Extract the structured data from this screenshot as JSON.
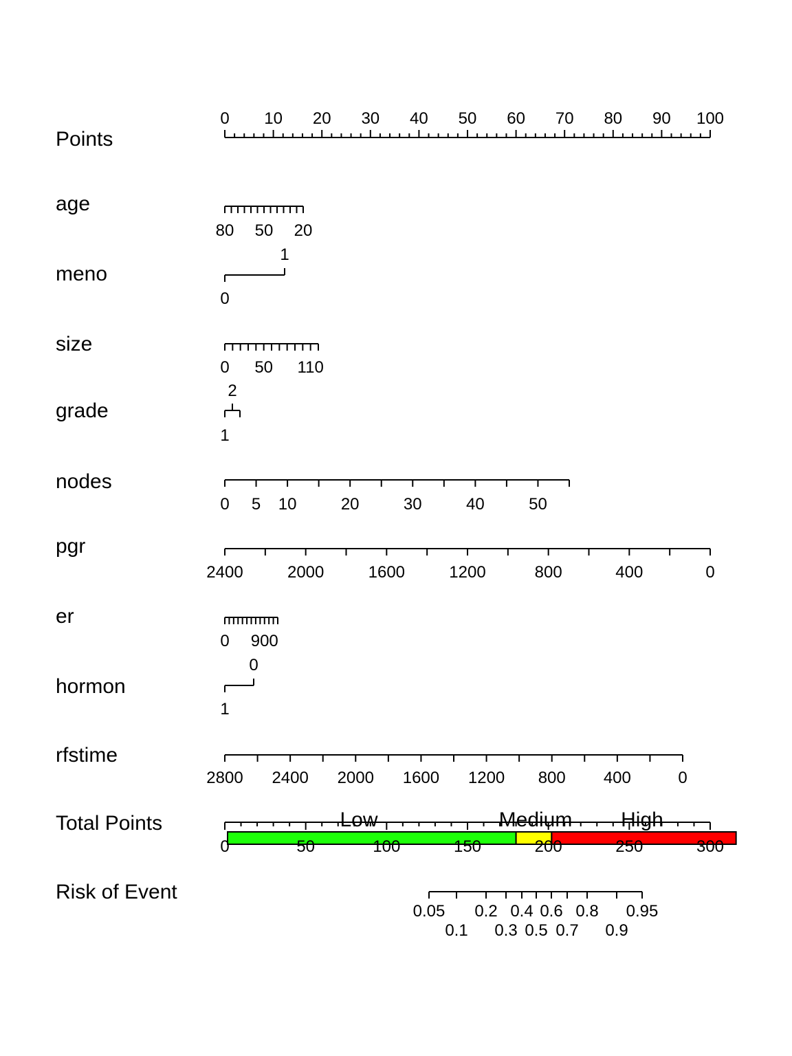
{
  "chart_data": {
    "type": "nomogram",
    "title": "",
    "rows": [
      {
        "label": "Points",
        "ticks": [
          0,
          2,
          4,
          6,
          8,
          10,
          12,
          14,
          16,
          18,
          20,
          22,
          24,
          26,
          28,
          30,
          32,
          34,
          36,
          38,
          40,
          42,
          44,
          46,
          48,
          50,
          52,
          54,
          56,
          58,
          60,
          62,
          64,
          66,
          68,
          70,
          72,
          74,
          76,
          78,
          80,
          82,
          84,
          86,
          88,
          90,
          92,
          94,
          96,
          98,
          100
        ],
        "labels": [
          0,
          10,
          20,
          30,
          40,
          50,
          60,
          70,
          80,
          90,
          100
        ]
      },
      {
        "label": "age",
        "ticks": [
          80,
          75,
          70,
          65,
          60,
          55,
          50,
          45,
          40,
          35,
          30,
          25,
          20
        ],
        "labels": [
          80,
          50,
          20
        ]
      },
      {
        "label": "meno",
        "ticks": [
          0,
          1
        ],
        "labels": [
          0,
          1
        ]
      },
      {
        "label": "size",
        "ticks": [
          0,
          10,
          20,
          30,
          40,
          50,
          60,
          70,
          80,
          90,
          100,
          110,
          120
        ],
        "labels": [
          0,
          50,
          110
        ]
      },
      {
        "label": "grade",
        "ticks": [
          1,
          2,
          3
        ],
        "labels": [
          1,
          2
        ]
      },
      {
        "label": "nodes",
        "ticks": [
          0,
          5,
          10,
          15,
          20,
          25,
          30,
          35,
          40,
          45,
          50,
          55
        ],
        "labels": [
          0,
          5,
          10,
          20,
          30,
          40,
          50
        ]
      },
      {
        "label": "pgr",
        "ticks": [
          2400,
          2200,
          2000,
          1800,
          1600,
          1400,
          1200,
          1000,
          800,
          600,
          400,
          200,
          0
        ],
        "labels": [
          2400,
          2000,
          1600,
          1200,
          800,
          400,
          0
        ]
      },
      {
        "label": "er",
        "ticks": [
          0,
          100,
          200,
          300,
          400,
          500,
          600,
          700,
          800,
          900,
          1000,
          1100,
          1200
        ],
        "labels": [
          0,
          900
        ]
      },
      {
        "label": "hormon",
        "ticks": [
          1,
          0
        ],
        "labels": [
          1,
          0
        ]
      },
      {
        "label": "rfstime",
        "ticks": [
          2800,
          2600,
          2400,
          2200,
          2000,
          1800,
          1600,
          1400,
          1200,
          1000,
          800,
          600,
          400,
          200,
          0
        ],
        "labels": [
          2800,
          2400,
          2000,
          1600,
          1200,
          800,
          400,
          0
        ]
      },
      {
        "label": "Total Points",
        "ticks": [
          0,
          10,
          20,
          30,
          40,
          50,
          60,
          70,
          80,
          90,
          100,
          110,
          120,
          130,
          140,
          150,
          160,
          170,
          180,
          190,
          200,
          210,
          220,
          230,
          240,
          250,
          260,
          270,
          280,
          290,
          300
        ],
        "labels": [
          0,
          50,
          100,
          150,
          200,
          250,
          300
        ]
      },
      {
        "label": "Risk of Event",
        "ticks": [
          0.05,
          0.1,
          0.2,
          0.3,
          0.4,
          0.5,
          0.6,
          0.7,
          0.8,
          0.9,
          0.95
        ],
        "labels": [
          0.05,
          0.1,
          0.2,
          0.3,
          0.4,
          0.5,
          0.6,
          0.7,
          0.8,
          0.9,
          0.95
        ]
      }
    ],
    "risk_groups": [
      {
        "name": "Low",
        "from": 0,
        "to": 180,
        "color": "#1EFF0A"
      },
      {
        "name": "Medium",
        "from": 180,
        "to": 202,
        "color": "#FFFF00"
      },
      {
        "name": "High",
        "from": 202,
        "to": 316,
        "color": "#FF0000"
      }
    ]
  }
}
